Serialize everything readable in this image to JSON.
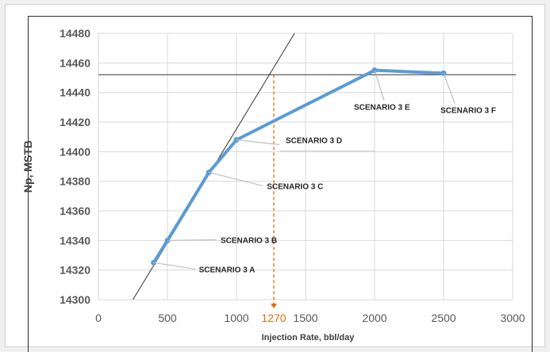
{
  "chart_data": {
    "type": "line",
    "title": "",
    "xlabel": "Injection Rate, bbl/day",
    "ylabel": "Np, MSTB",
    "xlim": [
      0,
      3000
    ],
    "ylim": [
      14300,
      14480
    ],
    "x_ticks": [
      0,
      500,
      1000,
      1500,
      2000,
      2500,
      3000
    ],
    "y_ticks": [
      14300,
      14320,
      14340,
      14360,
      14380,
      14400,
      14420,
      14440,
      14460,
      14480
    ],
    "grid": "horizontal and vertical",
    "series": [
      {
        "color": "#5b9bd5",
        "points": [
          {
            "x": 400,
            "y": 14325
          },
          {
            "x": 500,
            "y": 14340
          },
          {
            "x": 800,
            "y": 14386
          },
          {
            "x": 1000,
            "y": 14408
          },
          {
            "x": 2000,
            "y": 14455
          },
          {
            "x": 2500,
            "y": 14453
          }
        ]
      }
    ],
    "annotations": [
      {
        "label": "SCENARIO 3 A",
        "point": 0
      },
      {
        "label": "SCENARIO 3 B",
        "point": 1
      },
      {
        "label": "SCENARIO 3 C",
        "point": 2
      },
      {
        "label": "SCENARIO 3 D",
        "point": 3
      },
      {
        "label": "SCENARIO 3 E",
        "point": 4
      },
      {
        "label": "SCENARIO 3 F",
        "point": 5
      }
    ],
    "reference_lines": {
      "tangent": [
        {
          "x": 250,
          "y": 14300
        },
        {
          "x": 1420,
          "y": 14480
        }
      ],
      "plateau_y": 14452,
      "intersection_x": 1270,
      "intersection_label": "1270",
      "intersection_color": "#e46c0a"
    }
  }
}
